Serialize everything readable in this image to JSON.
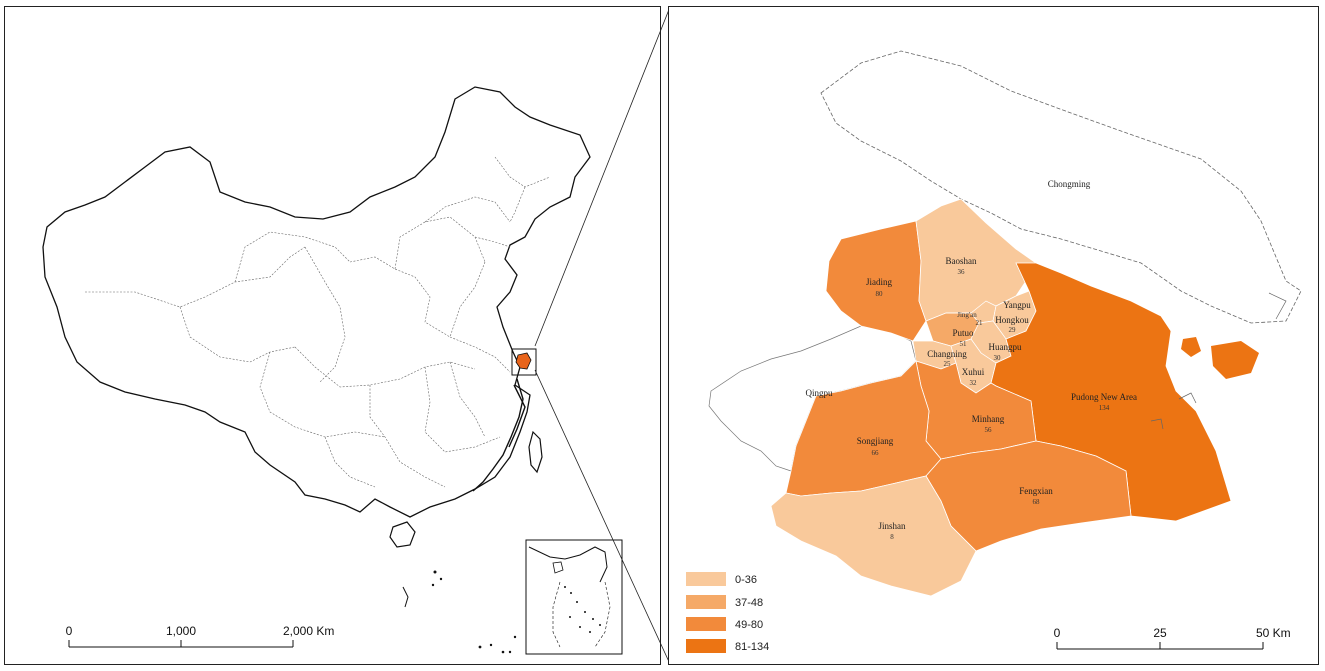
{
  "overview_map": {
    "scale_bar": {
      "labels": [
        "0",
        "1,000",
        "2,000 Km"
      ]
    }
  },
  "detail_map": {
    "scale_bar": {
      "labels": [
        "0",
        "25",
        "50 Km"
      ]
    },
    "legend": [
      {
        "label": "0-36",
        "color": "#f9c99b"
      },
      {
        "label": "37-48",
        "color": "#f5a967"
      },
      {
        "label": "49-80",
        "color": "#f28a3b"
      },
      {
        "label": "81-134",
        "color": "#ec7413"
      }
    ],
    "districts": [
      {
        "name": "Chongming",
        "value": ""
      },
      {
        "name": "Baoshan",
        "value": "36"
      },
      {
        "name": "Jiading",
        "value": "80"
      },
      {
        "name": "Yangpu",
        "value": ""
      },
      {
        "name": "Hongkou",
        "value": "29"
      },
      {
        "name": "Jing'an",
        "value": "21"
      },
      {
        "name": "Putuo",
        "value": "51"
      },
      {
        "name": "Changning",
        "value": "25"
      },
      {
        "name": "Huangpu",
        "value": "30"
      },
      {
        "name": "Xuhui",
        "value": "32"
      },
      {
        "name": "Qingpu",
        "value": ""
      },
      {
        "name": "Minhang",
        "value": "56"
      },
      {
        "name": "Pudong New Area",
        "value": "134"
      },
      {
        "name": "Songjiang",
        "value": "66"
      },
      {
        "name": "Fengxian",
        "value": "68"
      },
      {
        "name": "Jinshan",
        "value": "8"
      }
    ]
  }
}
